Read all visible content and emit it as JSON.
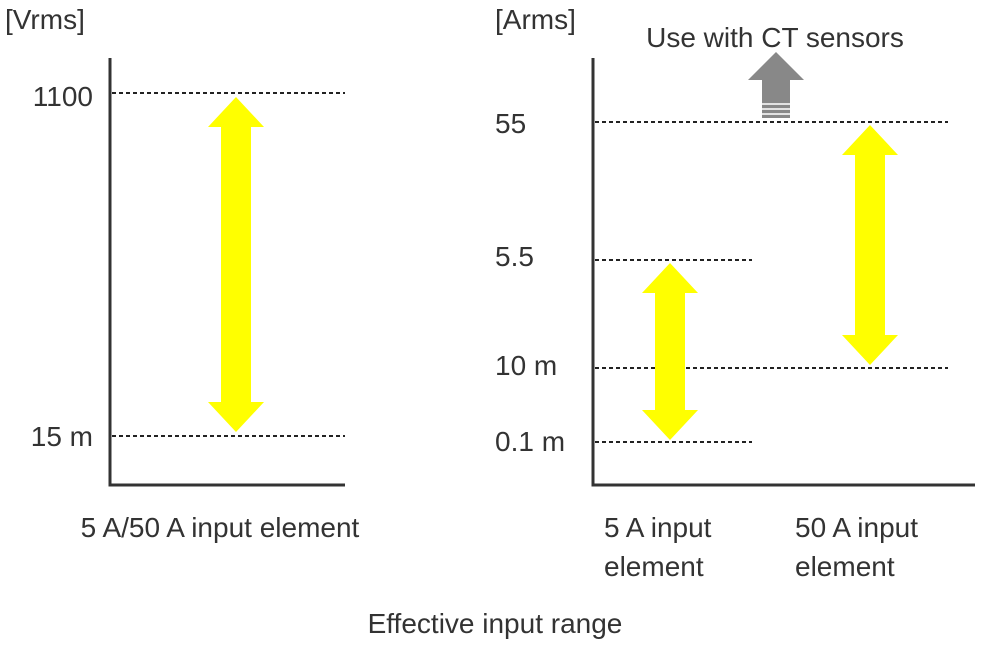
{
  "voltage": {
    "unit": "[Vrms]",
    "levels": [
      "1100",
      "15 m"
    ],
    "caption": "5 A/50 A input element"
  },
  "current": {
    "unit": "[Arms]",
    "note": "Use with CT sensors",
    "levels": [
      "55",
      "5.5",
      "10 m",
      "0.1 m"
    ],
    "captions": [
      [
        "5 A input",
        "element"
      ],
      [
        "50 A input",
        "element"
      ]
    ]
  },
  "footer": "Effective input range"
}
